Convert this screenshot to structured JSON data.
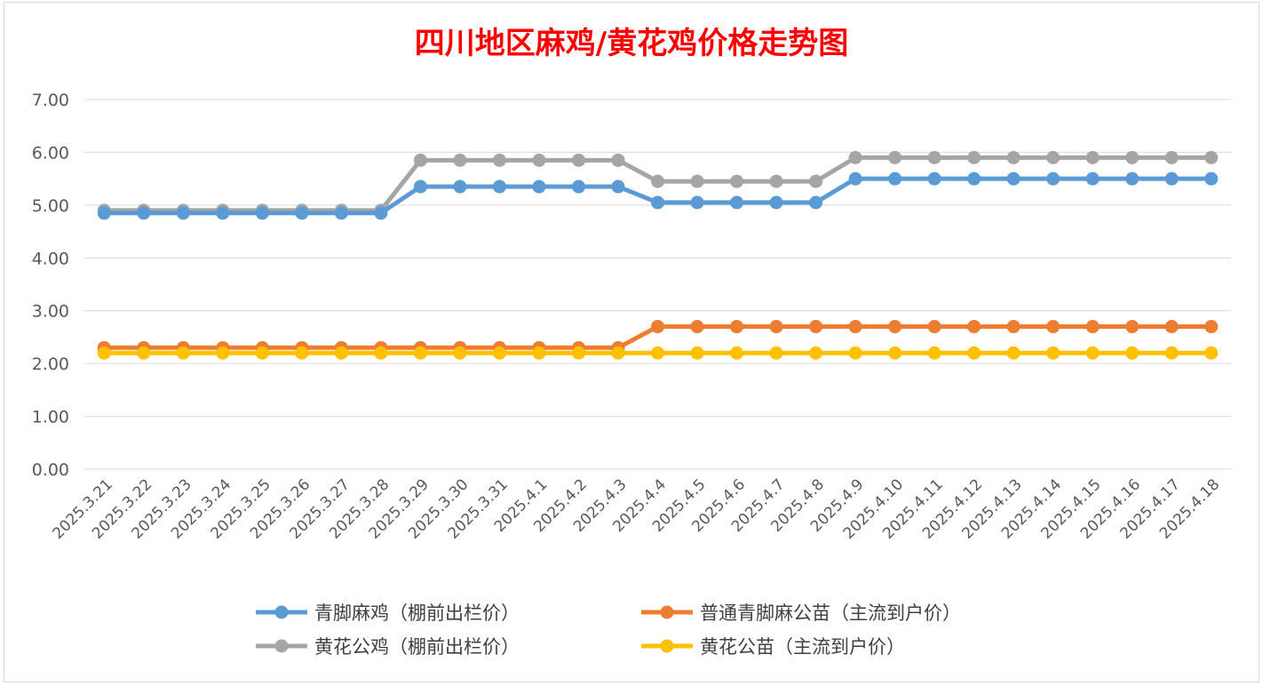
{
  "chart_data": {
    "type": "line",
    "title": "四川地区麻鸡/黄花鸡价格走势图",
    "xlabel": "",
    "ylabel": "",
    "ylim": [
      0,
      7
    ],
    "yticks": [
      "0.00",
      "1.00",
      "2.00",
      "3.00",
      "4.00",
      "5.00",
      "6.00",
      "7.00"
    ],
    "grid": true,
    "legend_position": "bottom",
    "categories": [
      "2025.3.21",
      "2025.3.22",
      "2025.3.23",
      "2025.3.24",
      "2025.3.25",
      "2025.3.26",
      "2025.3.27",
      "2025.3.28",
      "2025.3.29",
      "2025.3.30",
      "2025.3.31",
      "2025.4.1",
      "2025.4.2",
      "2025.4.3",
      "2025.4.4",
      "2025.4.5",
      "2025.4.6",
      "2025.4.7",
      "2025.4.8",
      "2025.4.9",
      "2025.4.10",
      "2025.4.11",
      "2025.4.12",
      "2025.4.13",
      "2025.4.14",
      "2025.4.15",
      "2025.4.16",
      "2025.4.17",
      "2025.4.18"
    ],
    "series": [
      {
        "name": "青脚麻鸡（棚前出栏价）",
        "color": "#5b9bd5",
        "values": [
          4.85,
          4.85,
          4.85,
          4.85,
          4.85,
          4.85,
          4.85,
          4.85,
          5.35,
          5.35,
          5.35,
          5.35,
          5.35,
          5.35,
          5.05,
          5.05,
          5.05,
          5.05,
          5.05,
          5.5,
          5.5,
          5.5,
          5.5,
          5.5,
          5.5,
          5.5,
          5.5,
          5.5,
          5.5
        ]
      },
      {
        "name": "普通青脚麻公苗（主流到户价）",
        "color": "#ed7d31",
        "values": [
          2.3,
          2.3,
          2.3,
          2.3,
          2.3,
          2.3,
          2.3,
          2.3,
          2.3,
          2.3,
          2.3,
          2.3,
          2.3,
          2.3,
          2.7,
          2.7,
          2.7,
          2.7,
          2.7,
          2.7,
          2.7,
          2.7,
          2.7,
          2.7,
          2.7,
          2.7,
          2.7,
          2.7,
          2.7
        ]
      },
      {
        "name": "黄花公鸡（棚前出栏价）",
        "color": "#a5a5a5",
        "values": [
          4.9,
          4.9,
          4.9,
          4.9,
          4.9,
          4.9,
          4.9,
          4.9,
          5.85,
          5.85,
          5.85,
          5.85,
          5.85,
          5.85,
          5.45,
          5.45,
          5.45,
          5.45,
          5.45,
          5.9,
          5.9,
          5.9,
          5.9,
          5.9,
          5.9,
          5.9,
          5.9,
          5.9,
          5.9
        ]
      },
      {
        "name": "黄花公苗（主流到户价）",
        "color": "#ffc000",
        "values": [
          2.2,
          2.2,
          2.2,
          2.2,
          2.2,
          2.2,
          2.2,
          2.2,
          2.2,
          2.2,
          2.2,
          2.2,
          2.2,
          2.2,
          2.2,
          2.2,
          2.2,
          2.2,
          2.2,
          2.2,
          2.2,
          2.2,
          2.2,
          2.2,
          2.2,
          2.2,
          2.2,
          2.2,
          2.2
        ]
      }
    ]
  }
}
